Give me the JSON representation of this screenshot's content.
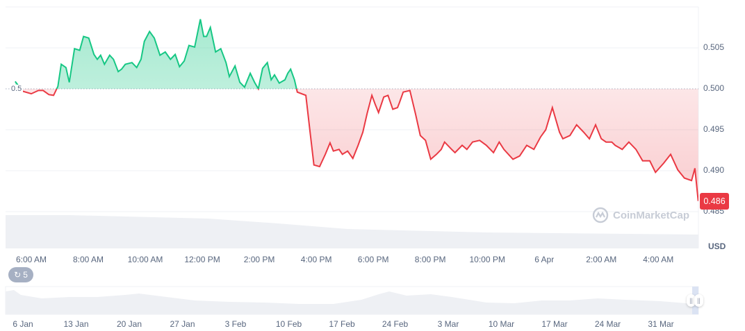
{
  "chart_data": {
    "type": "area",
    "baseline": 0.5,
    "baseline_label": "0.5",
    "currency": "USD",
    "current_price_label": "0.486",
    "colors": {
      "up": "#16c784",
      "down": "#ea3943"
    },
    "ylim": [
      0.4845,
      0.5105
    ],
    "y_ticks": [
      "0.505",
      "0.500",
      "0.495",
      "0.490",
      "0.485"
    ],
    "y_tick_values": [
      0.505,
      0.5,
      0.495,
      0.49,
      0.485
    ],
    "x_ticks": [
      "6:00 AM",
      "8:00 AM",
      "10:00 AM",
      "12:00 PM",
      "2:00 PM",
      "4:00 PM",
      "6:00 PM",
      "8:00 PM",
      "10:00 PM",
      "6 Apr",
      "2:00 AM",
      "4:00 AM"
    ],
    "x_tick_times": [
      "06:00",
      "08:00",
      "10:00",
      "12:00",
      "14:00",
      "16:00",
      "18:00",
      "20:00",
      "22:00",
      "00:00",
      "02:00",
      "04:00"
    ],
    "grid": true,
    "times": [
      "05:26",
      "05:42",
      "06:00",
      "06:15",
      "06:25",
      "06:37",
      "06:47",
      "06:56",
      "07:03",
      "07:13",
      "07:20",
      "07:31",
      "07:42",
      "07:50",
      "08:01",
      "08:12",
      "08:19",
      "08:26",
      "08:34",
      "08:45",
      "08:53",
      "09:03",
      "09:10",
      "09:18",
      "09:32",
      "09:42",
      "09:51",
      "09:58",
      "10:09",
      "10:19",
      "10:31",
      "10:42",
      "10:53",
      "11:03",
      "11:12",
      "11:22",
      "11:32",
      "11:44",
      "11:56",
      "12:03",
      "12:09",
      "12:17",
      "12:28",
      "12:39",
      "12:50",
      "12:57",
      "13:09",
      "13:19",
      "13:29",
      "13:41",
      "13:50",
      "13:58",
      "14:07",
      "14:17",
      "14:25",
      "14:32",
      "14:42",
      "14:54",
      "15:00",
      "15:06",
      "15:14",
      "15:20",
      "15:38",
      "15:47",
      "15:55",
      "16:07",
      "16:19",
      "16:29",
      "16:36",
      "16:48",
      "16:55",
      "17:06",
      "17:17",
      "17:28",
      "17:38",
      "17:47",
      "17:57",
      "18:04",
      "18:11",
      "18:22",
      "18:31",
      "18:41",
      "18:51",
      "18:55",
      "19:03",
      "19:17",
      "19:29",
      "19:39",
      "19:50",
      "20:01",
      "20:13",
      "20:23",
      "20:30",
      "20:45",
      "20:52",
      "21:07",
      "21:17",
      "21:29",
      "21:44",
      "21:58",
      "22:13",
      "22:25",
      "22:35",
      "22:54",
      "23:08",
      "23:23",
      "23:38",
      "23:52",
      "00:03",
      "00:17",
      "00:32",
      "00:39",
      "00:54",
      "01:08",
      "01:23",
      "01:35",
      "01:48",
      "02:00",
      "02:10",
      "02:22",
      "02:29",
      "02:44",
      "02:58",
      "03:13",
      "03:27",
      "03:42",
      "03:54",
      "04:11",
      "04:26",
      "04:41",
      "04:55",
      "05:10",
      "05:17",
      "05:24"
    ],
    "prices": [
      0.5009,
      0.4997,
      0.4994,
      0.4998,
      0.4998,
      0.4993,
      0.4992,
      0.5003,
      0.503,
      0.5026,
      0.5008,
      0.5049,
      0.5047,
      0.5064,
      0.5062,
      0.5042,
      0.5036,
      0.5041,
      0.503,
      0.5041,
      0.5036,
      0.5021,
      0.5024,
      0.503,
      0.5032,
      0.5026,
      0.5036,
      0.5058,
      0.507,
      0.5062,
      0.5041,
      0.5045,
      0.5036,
      0.5042,
      0.5027,
      0.5034,
      0.5053,
      0.5051,
      0.5085,
      0.5064,
      0.5064,
      0.5075,
      0.5045,
      0.5049,
      0.5032,
      0.5015,
      0.5028,
      0.5008,
      0.5002,
      0.5019,
      0.5008,
      0.5,
      0.5025,
      0.5032,
      0.5011,
      0.5017,
      0.5007,
      0.5011,
      0.5019,
      0.5024,
      0.5011,
      0.4996,
      0.4992,
      0.4947,
      0.4907,
      0.4905,
      0.492,
      0.4934,
      0.4924,
      0.4926,
      0.492,
      0.4924,
      0.4915,
      0.4931,
      0.4947,
      0.497,
      0.4992,
      0.4981,
      0.4971,
      0.499,
      0.4992,
      0.4975,
      0.4977,
      0.4983,
      0.4996,
      0.4998,
      0.4969,
      0.4943,
      0.4937,
      0.4914,
      0.492,
      0.4926,
      0.4935,
      0.4926,
      0.4922,
      0.4931,
      0.4926,
      0.4935,
      0.4937,
      0.4931,
      0.4922,
      0.4935,
      0.4926,
      0.4914,
      0.4918,
      0.4931,
      0.4926,
      0.4941,
      0.495,
      0.4977,
      0.4947,
      0.4939,
      0.4943,
      0.4956,
      0.4947,
      0.4939,
      0.4956,
      0.4939,
      0.4935,
      0.4935,
      0.4931,
      0.4926,
      0.4935,
      0.4926,
      0.4912,
      0.4912,
      0.4898,
      0.4909,
      0.492,
      0.4901,
      0.4891,
      0.4888,
      0.4903,
      0.4863
    ]
  },
  "watermark": "CoinMarketCap",
  "events_badge": {
    "count": "5",
    "icon": "history-icon"
  },
  "navigator": {
    "date_ticks": [
      "6 Jan",
      "13 Jan",
      "20 Jan",
      "27 Jan",
      "3 Feb",
      "10 Feb",
      "17 Feb",
      "24 Feb",
      "3 Mar",
      "10 Mar",
      "17 Mar",
      "24 Mar",
      "31 Mar"
    ]
  }
}
